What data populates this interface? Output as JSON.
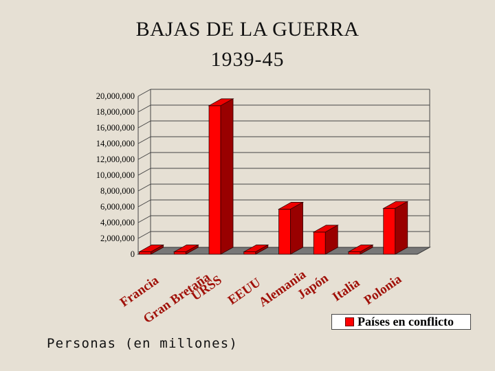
{
  "chart_data": {
    "type": "bar",
    "title": "BAJAS DE LA GUERRA",
    "subtitle": "1939-45",
    "xlabel": "",
    "ylabel": "",
    "ylim": [
      0,
      20000000
    ],
    "yticks": [
      "0",
      "2,000,000",
      "4,000,000",
      "6,000,000",
      "8,000,000",
      "10,000,000",
      "12,000,000",
      "14,000,000",
      "16,000,000",
      "18,000,000",
      "20,000,000"
    ],
    "grid": true,
    "legend_position": "bottom-right",
    "categories": [
      "Francia",
      "Gran Bretaña",
      "URSS",
      "EEUU",
      "Alemania",
      "Japón",
      "Italia",
      "Polonia"
    ],
    "series": [
      {
        "name": "Países en conflicto",
        "color": "#ff0000",
        "values": [
          300000,
          300000,
          18800000,
          300000,
          5700000,
          2800000,
          300000,
          5800000
        ]
      }
    ]
  },
  "footnote": "Personas (en millones)",
  "colors": {
    "background": "#e6e0d4",
    "bar_front": "#ff0000",
    "bar_top": "#ee0000",
    "bar_side": "#990000",
    "category_label": "#a01008",
    "floor": "#777777"
  }
}
